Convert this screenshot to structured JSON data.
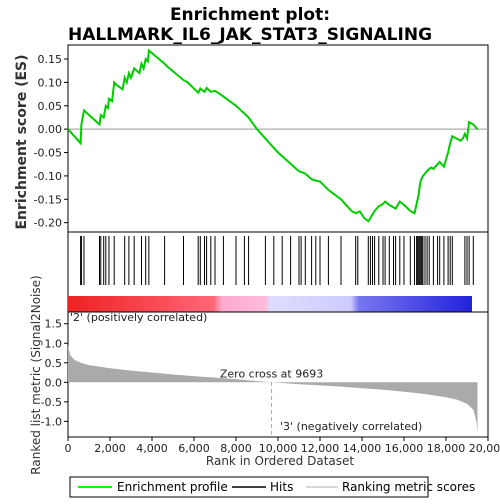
{
  "chart_data": {
    "type": "line",
    "title_line1": "Enrichment plot:",
    "title_line2": "HALLMARK_IL6_JAK_STAT3_SIGNALING",
    "es_panel": {
      "ylabel": "Enrichment score (ES)",
      "ylim": [
        -0.22,
        0.18
      ],
      "yticks": [
        -0.2,
        -0.15,
        -0.1,
        -0.05,
        0.0,
        0.05,
        0.1,
        0.15
      ],
      "ytick_labels": [
        "-0.20",
        "-0.15",
        "-0.10",
        "-0.05",
        "0.00",
        "0.05",
        "0.10",
        "0.15"
      ],
      "line_color": "#00cc00",
      "points": [
        [
          0,
          0.0
        ],
        [
          600,
          -0.03
        ],
        [
          640,
          0.01
        ],
        [
          760,
          0.04
        ],
        [
          1500,
          0.01
        ],
        [
          1560,
          0.03
        ],
        [
          1700,
          0.025
        ],
        [
          1800,
          0.05
        ],
        [
          1900,
          0.045
        ],
        [
          1950,
          0.065
        ],
        [
          2100,
          0.06
        ],
        [
          2200,
          0.1
        ],
        [
          2300,
          0.095
        ],
        [
          2600,
          0.085
        ],
        [
          2700,
          0.11
        ],
        [
          2800,
          0.1
        ],
        [
          2900,
          0.12
        ],
        [
          3000,
          0.11
        ],
        [
          3150,
          0.13
        ],
        [
          3400,
          0.12
        ],
        [
          3500,
          0.14
        ],
        [
          3600,
          0.13
        ],
        [
          3700,
          0.15
        ],
        [
          3800,
          0.145
        ],
        [
          3850,
          0.168
        ],
        [
          4600,
          0.14
        ],
        [
          4700,
          0.135
        ],
        [
          5500,
          0.105
        ],
        [
          5700,
          0.1
        ],
        [
          6200,
          0.078
        ],
        [
          6300,
          0.087
        ],
        [
          6500,
          0.08
        ],
        [
          6600,
          0.088
        ],
        [
          6800,
          0.08
        ],
        [
          7000,
          0.082
        ],
        [
          7400,
          0.07
        ],
        [
          8000,
          0.05
        ],
        [
          8600,
          0.025
        ],
        [
          9000,
          0.0
        ],
        [
          10000,
          -0.05
        ],
        [
          11000,
          -0.09
        ],
        [
          11300,
          -0.095
        ],
        [
          11600,
          -0.107
        ],
        [
          11800,
          -0.11
        ],
        [
          12000,
          -0.112
        ],
        [
          12400,
          -0.13
        ],
        [
          13000,
          -0.15
        ],
        [
          13500,
          -0.175
        ],
        [
          13700,
          -0.18
        ],
        [
          13900,
          -0.176
        ],
        [
          14100,
          -0.19
        ],
        [
          14300,
          -0.197
        ],
        [
          14400,
          -0.19
        ],
        [
          14600,
          -0.175
        ],
        [
          14800,
          -0.165
        ],
        [
          15000,
          -0.16
        ],
        [
          15100,
          -0.155
        ],
        [
          15300,
          -0.162
        ],
        [
          15600,
          -0.17
        ],
        [
          15800,
          -0.155
        ],
        [
          16000,
          -0.162
        ],
        [
          16300,
          -0.175
        ],
        [
          16500,
          -0.18
        ],
        [
          16600,
          -0.16
        ],
        [
          16700,
          -0.14
        ],
        [
          16750,
          -0.12
        ],
        [
          16800,
          -0.11
        ],
        [
          16900,
          -0.1
        ],
        [
          17000,
          -0.095
        ],
        [
          17100,
          -0.09
        ],
        [
          17200,
          -0.085
        ],
        [
          17300,
          -0.082
        ],
        [
          17400,
          -0.085
        ],
        [
          17500,
          -0.08
        ],
        [
          17600,
          -0.075
        ],
        [
          17700,
          -0.07
        ],
        [
          17900,
          -0.08
        ],
        [
          18100,
          -0.05
        ],
        [
          18200,
          -0.03
        ],
        [
          18300,
          -0.015
        ],
        [
          18500,
          -0.02
        ],
        [
          18700,
          -0.025
        ],
        [
          18800,
          -0.02
        ],
        [
          18900,
          -0.01
        ],
        [
          19000,
          -0.02
        ],
        [
          19100,
          0.015
        ],
        [
          19300,
          0.01
        ],
        [
          19500,
          0.0
        ]
      ]
    },
    "hits_panel": {
      "hit_positions": [
        600,
        640,
        760,
        1500,
        1560,
        1700,
        1800,
        1950,
        2200,
        2700,
        2900,
        3150,
        3500,
        3700,
        3850,
        4600,
        5500,
        6200,
        6300,
        6500,
        6600,
        6800,
        7000,
        7400,
        8000,
        8400,
        8600,
        9400,
        9800,
        10200,
        10600,
        11000,
        11100,
        11300,
        11600,
        11800,
        12000,
        12400,
        13000,
        13700,
        13800,
        14300,
        14400,
        14500,
        14600,
        14800,
        15000,
        15100,
        15300,
        15500,
        15600,
        15800,
        16000,
        16300,
        16500,
        16600,
        16650,
        16700,
        16750,
        16800,
        16850,
        16900,
        17000,
        17100,
        17200,
        17400,
        17600,
        17700,
        17900,
        18100,
        18200,
        18300,
        18900,
        19000,
        19100,
        19300
      ]
    },
    "ranking_panel": {
      "ylabel": "Ranked list metric (Signal2Noise)",
      "ylim": [
        -1.4,
        1.8
      ],
      "yticks": [
        -1.0,
        -0.5,
        0.0,
        0.5,
        1.0,
        1.5
      ],
      "ytick_labels": [
        "-1.0",
        "-0.5",
        "0.0",
        "0.5",
        "1.0",
        "1.5"
      ],
      "fill_color": "#aaaaaa",
      "curve": [
        [
          0,
          0.95
        ],
        [
          100,
          0.7
        ],
        [
          300,
          0.58
        ],
        [
          600,
          0.5
        ],
        [
          1000,
          0.44
        ],
        [
          2000,
          0.36
        ],
        [
          3000,
          0.3
        ],
        [
          4000,
          0.25
        ],
        [
          5000,
          0.2
        ],
        [
          6000,
          0.16
        ],
        [
          7000,
          0.12
        ],
        [
          8000,
          0.08
        ],
        [
          9000,
          0.03
        ],
        [
          9693,
          0.0
        ],
        [
          11000,
          -0.05
        ],
        [
          12000,
          -0.08
        ],
        [
          13000,
          -0.11
        ],
        [
          14000,
          -0.15
        ],
        [
          15000,
          -0.19
        ],
        [
          16000,
          -0.24
        ],
        [
          17000,
          -0.3
        ],
        [
          18000,
          -0.38
        ],
        [
          18500,
          -0.44
        ],
        [
          19000,
          -0.55
        ],
        [
          19300,
          -0.7
        ],
        [
          19450,
          -1.0
        ],
        [
          19500,
          -1.3
        ]
      ],
      "zero_cross_label": "Zero cross at 9693",
      "zero_cross": 9693,
      "pos_label": "'2' (positively correlated)",
      "neg_label": "'3' (negatively correlated)"
    },
    "x_axis": {
      "xlabel": "Rank in Ordered Dataset",
      "xlim": [
        0,
        20000
      ],
      "xticks": [
        0,
        2000,
        4000,
        6000,
        8000,
        10000,
        12000,
        14000,
        16000,
        18000,
        20000
      ],
      "xtick_labels": [
        "0",
        "2,000",
        "4,000",
        "6,000",
        "8,000",
        "10,000",
        "12,000",
        "14,000",
        "16,000",
        "18,000",
        "20,000"
      ],
      "n_genes": 19500
    },
    "legend": {
      "entries": [
        {
          "name": "Enrichment profile",
          "color": "#00ff00"
        },
        {
          "name": "Hits",
          "color": "#000000"
        },
        {
          "name": "Ranking metric scores",
          "color": "#cccccc"
        }
      ]
    },
    "gradient_colors": {
      "pos": "#ee2222",
      "mid_pos": "#ffbbdd",
      "mid_neg": "#ccccff",
      "neg": "#2222dd"
    }
  }
}
